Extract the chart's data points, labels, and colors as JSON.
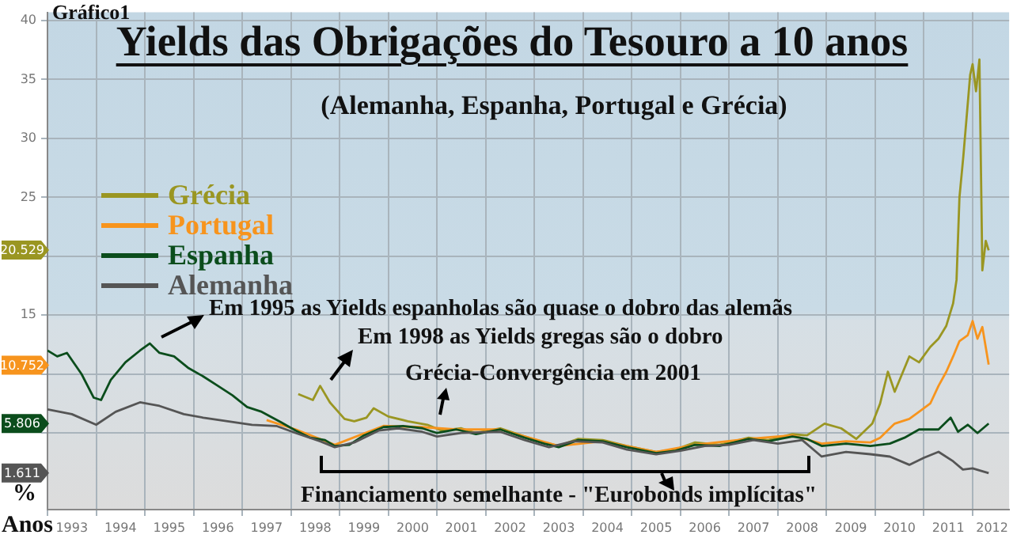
{
  "chart_data": {
    "type": "line",
    "title": "Yields das Obrigações do Tesouro a 10 anos",
    "subtitle": "(Alemanha, Espanha, Portugal e Grécia)",
    "xlabel": "Anos",
    "ylabel": "%",
    "xlim": [
      1993,
      2012.75
    ],
    "ylim": [
      -1.5,
      40.7
    ],
    "yticks": [
      {
        "value": 5,
        "label": null
      },
      {
        "value": 10,
        "label": null
      },
      15,
      {
        "value": 20,
        "label": null
      },
      25,
      30,
      35,
      40
    ],
    "xticks": [
      {
        "value": 1993,
        "label": null
      },
      {
        "value": 1993.5,
        "label": "1993"
      },
      {
        "value": 1994,
        "label": null
      },
      {
        "value": 1994.5,
        "label": "1994"
      },
      {
        "value": 1995,
        "label": null
      },
      {
        "value": 1995.5,
        "label": "1995"
      },
      {
        "value": 1996,
        "label": null
      },
      {
        "value": 1996.5,
        "label": "1996"
      },
      {
        "value": 1997,
        "label": null
      },
      {
        "value": 1997.5,
        "label": "1997"
      },
      {
        "value": 1998,
        "label": null
      },
      {
        "value": 1998.5,
        "label": "1998"
      },
      {
        "value": 1999,
        "label": null
      },
      {
        "value": 1999.5,
        "label": "1999"
      },
      {
        "value": 2000,
        "label": null
      },
      {
        "value": 2000.5,
        "label": "2000"
      },
      {
        "value": 2001,
        "label": null
      },
      {
        "value": 2001.5,
        "label": "2001"
      },
      {
        "value": 2002,
        "label": null
      },
      {
        "value": 2002.5,
        "label": "2002"
      },
      {
        "value": 2003,
        "label": null
      },
      {
        "value": 2003.5,
        "label": "2003"
      },
      {
        "value": 2004,
        "label": null
      },
      {
        "value": 2004.5,
        "label": "2004"
      },
      {
        "value": 2005,
        "label": null
      },
      {
        "value": 2005.5,
        "label": "2005"
      },
      {
        "value": 2006,
        "label": null
      },
      {
        "value": 2006.5,
        "label": "2006"
      },
      {
        "value": 2007,
        "label": null
      },
      {
        "value": 2007.5,
        "label": "2007"
      },
      {
        "value": 2008,
        "label": null
      },
      {
        "value": 2008.5,
        "label": "2008"
      },
      {
        "value": 2009,
        "label": null
      },
      {
        "value": 2009.5,
        "label": "2009"
      },
      {
        "value": 2010,
        "label": null
      },
      {
        "value": 2010.5,
        "label": "2010"
      },
      {
        "value": 2011,
        "label": null
      },
      {
        "value": 2011.5,
        "label": "2011"
      },
      {
        "value": 2012,
        "label": null
      },
      {
        "value": 2012.4,
        "label": "2012"
      }
    ],
    "grid": true,
    "legend": "top left",
    "marker": "none",
    "line_style": "solid",
    "series": [
      {
        "name": "Grécia",
        "color": "#9a9622",
        "x": [
          1998.15,
          1998.45,
          1998.6,
          1998.8,
          1999.1,
          1999.3,
          1999.55,
          1999.7,
          2000.0,
          2000.4,
          2000.8,
          2001.1,
          2001.5,
          2001.8,
          2002.3,
          2002.8,
          2003.2,
          2003.5,
          2003.9,
          2004.4,
          2004.9,
          2005.5,
          2005.9,
          2006.3,
          2006.8,
          2007.4,
          2007.8,
          2008.3,
          2008.6,
          2008.96,
          2009.3,
          2009.61,
          2009.94,
          2010.1,
          2010.26,
          2010.4,
          2010.48,
          2010.7,
          2010.9,
          2011.13,
          2011.3,
          2011.46,
          2011.6,
          2011.67,
          2011.73,
          2011.81,
          2011.95,
          2012.0,
          2012.07,
          2012.14,
          2012.2,
          2012.27,
          2012.33
        ],
        "values": [
          8.3,
          7.8,
          9.0,
          7.6,
          6.2,
          6.0,
          6.3,
          7.1,
          6.4,
          6.0,
          5.7,
          5.2,
          5.4,
          5.0,
          5.4,
          4.7,
          4.2,
          3.9,
          4.5,
          4.4,
          3.9,
          3.4,
          3.6,
          4.2,
          4.0,
          4.6,
          4.4,
          4.9,
          4.8,
          5.8,
          5.4,
          4.5,
          5.8,
          7.5,
          10.2,
          8.5,
          9.3,
          11.5,
          11.0,
          12.3,
          13.0,
          14.1,
          16.0,
          18.0,
          25.0,
          28.5,
          35.4,
          36.3,
          34.0,
          36.7,
          18.8,
          21.3,
          20.5
        ]
      },
      {
        "name": "Portugal",
        "color": "#f7941d",
        "x": [
          1997.5,
          1998.1,
          1998.9,
          1999.9,
          2000.7,
          2001.4,
          2002.3,
          2003.5,
          2004.4,
          2005.5,
          2006.3,
          2007.4,
          2008.3,
          2008.9,
          2009.4,
          2009.9,
          2010.1,
          2010.4,
          2010.7,
          2010.9,
          2011.13,
          2011.3,
          2011.46,
          2011.6,
          2011.73,
          2011.9,
          2012.0,
          2012.1,
          2012.2,
          2012.33
        ],
        "values": [
          6.1,
          5.3,
          4.0,
          5.6,
          5.5,
          5.3,
          5.3,
          3.9,
          4.3,
          3.4,
          4.0,
          4.5,
          4.8,
          4.1,
          4.3,
          4.2,
          4.6,
          5.8,
          6.2,
          6.8,
          7.5,
          9.0,
          10.2,
          11.5,
          12.8,
          13.3,
          14.5,
          13.0,
          14.0,
          10.8
        ]
      },
      {
        "name": "Espanha",
        "color": "#0b4d1c",
        "x": [
          1993.0,
          1993.2,
          1993.4,
          1993.7,
          1993.95,
          1994.1,
          1994.3,
          1994.6,
          1994.9,
          1995.1,
          1995.3,
          1995.6,
          1995.9,
          1996.2,
          1996.5,
          1996.8,
          1997.1,
          1997.4,
          1997.8,
          1998.1,
          1998.4,
          1998.7,
          1998.9,
          1999.2,
          1999.5,
          1999.9,
          2000.3,
          2000.7,
          2001.0,
          2001.4,
          2001.8,
          2002.3,
          2002.8,
          2003.2,
          2003.5,
          2003.9,
          2004.4,
          2004.9,
          2005.5,
          2005.9,
          2006.3,
          2006.8,
          2007.4,
          2007.8,
          2008.3,
          2008.6,
          2008.9,
          2009.4,
          2009.9,
          2010.3,
          2010.6,
          2010.9,
          2011.3,
          2011.55,
          2011.7,
          2011.9,
          2012.1,
          2012.33
        ],
        "values": [
          12.0,
          11.5,
          11.8,
          10.0,
          8.0,
          7.8,
          9.5,
          11.0,
          12.0,
          12.6,
          11.8,
          11.5,
          10.5,
          9.8,
          9.0,
          8.2,
          7.2,
          6.8,
          5.9,
          5.2,
          4.6,
          4.4,
          3.9,
          4.0,
          4.8,
          5.5,
          5.6,
          5.4,
          5.0,
          5.3,
          4.9,
          5.3,
          4.6,
          4.1,
          3.8,
          4.4,
          4.3,
          3.8,
          3.3,
          3.5,
          4.0,
          3.9,
          4.5,
          4.3,
          4.7,
          4.5,
          3.9,
          4.1,
          3.9,
          4.1,
          4.6,
          5.3,
          5.3,
          6.3,
          5.1,
          5.7,
          5.0,
          5.8
        ]
      },
      {
        "name": "Alemanha",
        "color": "#555555",
        "x": [
          1993.0,
          1993.5,
          1994.0,
          1994.4,
          1994.9,
          1995.3,
          1995.8,
          1996.2,
          1996.7,
          1997.2,
          1997.7,
          1998.1,
          1998.6,
          1998.9,
          1999.3,
          1999.8,
          2000.2,
          2000.7,
          2001.0,
          2001.5,
          2002.3,
          2002.8,
          2003.3,
          2003.8,
          2004.4,
          2004.9,
          2005.5,
          2006.0,
          2006.5,
          2007.0,
          2007.5,
          2008.0,
          2008.5,
          2008.9,
          2009.4,
          2009.9,
          2010.3,
          2010.7,
          2011.0,
          2011.3,
          2011.6,
          2011.8,
          2012.0,
          2012.33
        ],
        "values": [
          7.0,
          6.6,
          5.7,
          6.8,
          7.6,
          7.3,
          6.6,
          6.3,
          6.0,
          5.7,
          5.6,
          5.0,
          4.3,
          3.8,
          4.2,
          5.2,
          5.4,
          5.1,
          4.7,
          5.0,
          5.1,
          4.4,
          3.8,
          4.3,
          4.2,
          3.6,
          3.2,
          3.5,
          3.9,
          4.0,
          4.4,
          4.1,
          4.4,
          3.0,
          3.4,
          3.2,
          3.0,
          2.3,
          2.9,
          3.4,
          2.6,
          1.9,
          2.0,
          1.6
        ]
      }
    ],
    "annotations": [
      "Gráfico1",
      "Em 1995 as Yields espanholas são quase o dobro das alemãs",
      "Em 1998 as Yields gregas são o dobro",
      "Grécia-Convergência em 2001",
      "Financiamento semelhante - \"Eurobonds implícitas\"",
      {
        "text": "20.529",
        "y": 20.529
      },
      {
        "text": "10.752",
        "y": 10.752
      },
      {
        "text": "5.806",
        "y": 5.806
      },
      {
        "text": "1.611",
        "y": 1.611
      }
    ]
  }
}
